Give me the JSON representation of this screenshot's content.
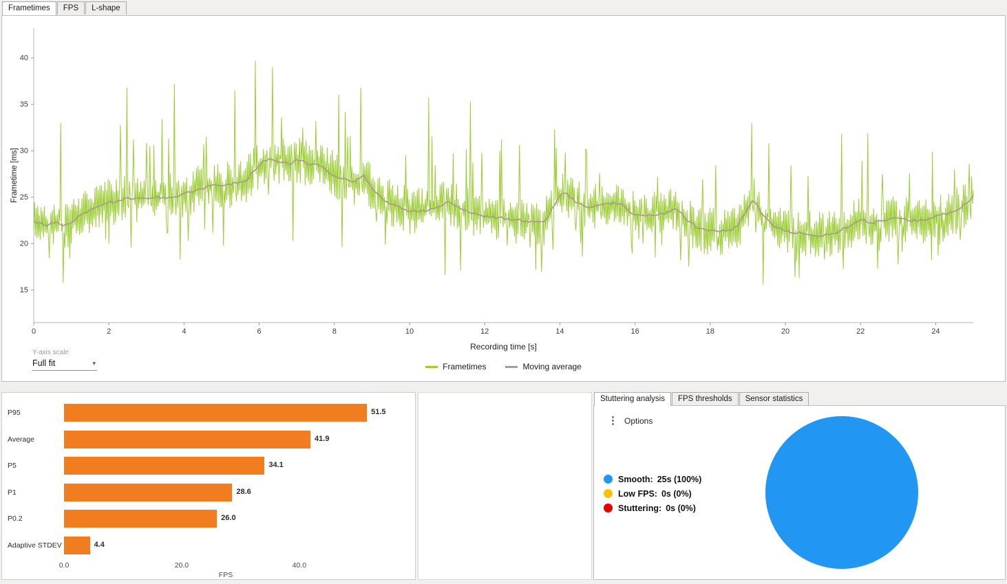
{
  "top_panel": {
    "tabs": [
      {
        "label": "Frametimes",
        "active": true
      },
      {
        "label": "FPS",
        "active": false
      },
      {
        "label": "L-shape",
        "active": false
      }
    ],
    "y_axis_scale": {
      "label": "Y-axis scale",
      "value": "Full fit"
    },
    "legend": [
      {
        "label": "Frametimes",
        "color": "#9ACD32"
      },
      {
        "label": "Moving average",
        "color": "#AB9B8D"
      }
    ]
  },
  "right_panel": {
    "tabs": [
      {
        "label": "Stuttering analysis",
        "active": true
      },
      {
        "label": "FPS thresholds",
        "active": false
      },
      {
        "label": "Sensor statistics",
        "active": false
      }
    ],
    "options_label": "Options",
    "legend": [
      {
        "label": "Smooth:",
        "value": "25s (100%)",
        "color": "#2196F3"
      },
      {
        "label": "Low FPS:",
        "value": "0s (0%)",
        "color": "#FFC107"
      },
      {
        "label": "Stuttering:",
        "value": "0s (0%)",
        "color": "#E60000"
      }
    ]
  },
  "chart_data": [
    {
      "type": "line",
      "title": "Frametimes",
      "xlabel": "Recording time [s]",
      "ylabel": "Frametime [ms]",
      "xlim": [
        0,
        25
      ],
      "ylim": [
        11.5,
        43.2
      ],
      "xticks": [
        0,
        2,
        4,
        6,
        8,
        10,
        12,
        14,
        16,
        18,
        20,
        22,
        24
      ],
      "yticks": [
        15,
        20,
        25,
        30,
        35,
        40
      ],
      "grid": false,
      "legend_position": "bottom",
      "series": [
        {
          "name": "Frametimes",
          "color": "#9ACD32"
        },
        {
          "name": "Moving average",
          "color": "#AB9B8D"
        }
      ],
      "moving_average_waypoints": [
        [
          0,
          22.3
        ],
        [
          0.3,
          22.0
        ],
        [
          0.6,
          22.3
        ],
        [
          0.8,
          21.8
        ],
        [
          1.0,
          22.4
        ],
        [
          1.3,
          23.2
        ],
        [
          1.6,
          23.8
        ],
        [
          2.0,
          24.4
        ],
        [
          2.4,
          24.8
        ],
        [
          2.8,
          24.9
        ],
        [
          3.2,
          25.0
        ],
        [
          3.6,
          25.0
        ],
        [
          4.0,
          25.3
        ],
        [
          4.4,
          25.9
        ],
        [
          4.8,
          26.3
        ],
        [
          5.2,
          26.4
        ],
        [
          5.6,
          26.6
        ],
        [
          5.9,
          28.0
        ],
        [
          6.1,
          28.8
        ],
        [
          6.3,
          29.2
        ],
        [
          6.5,
          28.9
        ],
        [
          6.8,
          28.6
        ],
        [
          7.0,
          29.0
        ],
        [
          7.3,
          28.6
        ],
        [
          7.6,
          28.4
        ],
        [
          7.9,
          27.6
        ],
        [
          8.2,
          27.0
        ],
        [
          8.5,
          26.6
        ],
        [
          8.8,
          27.3
        ],
        [
          9.0,
          26.0
        ],
        [
          9.3,
          24.8
        ],
        [
          9.6,
          24.1
        ],
        [
          10.0,
          23.5
        ],
        [
          10.4,
          23.6
        ],
        [
          10.7,
          23.9
        ],
        [
          11.0,
          24.5
        ],
        [
          11.2,
          24.2
        ],
        [
          11.5,
          23.5
        ],
        [
          12.0,
          23.0
        ],
        [
          12.4,
          22.8
        ],
        [
          12.8,
          22.6
        ],
        [
          13.2,
          22.3
        ],
        [
          13.6,
          22.4
        ],
        [
          13.9,
          24.5
        ],
        [
          14.1,
          25.6
        ],
        [
          14.4,
          24.6
        ],
        [
          14.7,
          24.0
        ],
        [
          15.0,
          24.1
        ],
        [
          15.3,
          24.4
        ],
        [
          15.6,
          24.3
        ],
        [
          16.0,
          23.1
        ],
        [
          16.4,
          23.0
        ],
        [
          16.8,
          23.3
        ],
        [
          17.1,
          23.9
        ],
        [
          17.4,
          22.5
        ],
        [
          17.7,
          21.6
        ],
        [
          18.0,
          21.3
        ],
        [
          18.4,
          21.4
        ],
        [
          18.7,
          21.7
        ],
        [
          19.0,
          23.8
        ],
        [
          19.15,
          24.9
        ],
        [
          19.4,
          23.0
        ],
        [
          19.7,
          21.9
        ],
        [
          20.0,
          21.4
        ],
        [
          20.4,
          21.1
        ],
        [
          20.8,
          20.9
        ],
        [
          21.2,
          21.0
        ],
        [
          21.6,
          21.7
        ],
        [
          22.0,
          22.6
        ],
        [
          22.3,
          22.2
        ],
        [
          22.6,
          22.4
        ],
        [
          23.0,
          22.8
        ],
        [
          23.3,
          22.4
        ],
        [
          23.7,
          22.6
        ],
        [
          24.0,
          23.0
        ],
        [
          24.4,
          23.3
        ],
        [
          24.7,
          23.9
        ],
        [
          25.0,
          25.1
        ]
      ],
      "peaks": [
        [
          0.72,
          33.0
        ],
        [
          2.47,
          36.8
        ],
        [
          3.1,
          30.5
        ],
        [
          3.42,
          33.4
        ],
        [
          3.75,
          37.2
        ],
        [
          4.6,
          31.5
        ],
        [
          5.35,
          36.5
        ],
        [
          5.9,
          39.7
        ],
        [
          6.35,
          39.0
        ],
        [
          6.6,
          33.6
        ],
        [
          7.15,
          32.5
        ],
        [
          7.5,
          33.2
        ],
        [
          8.35,
          31.5
        ],
        [
          8.7,
          36.8
        ],
        [
          9.9,
          29.5
        ],
        [
          10.5,
          35.7
        ],
        [
          11.62,
          35.3
        ],
        [
          12.4,
          30.0
        ],
        [
          13.9,
          30.3
        ],
        [
          14.15,
          29.8
        ],
        [
          15.05,
          27.6
        ],
        [
          16.6,
          27.2
        ],
        [
          19.1,
          33.0
        ],
        [
          19.55,
          30.8
        ],
        [
          20.6,
          27.3
        ],
        [
          21.5,
          31.8
        ],
        [
          22.2,
          31.9
        ],
        [
          23.3,
          27.6
        ],
        [
          24.5,
          28.0
        ],
        [
          24.9,
          28.6
        ]
      ],
      "dips": [
        [
          0.78,
          15.8
        ],
        [
          2.6,
          19.6
        ],
        [
          3.9,
          18.3
        ],
        [
          5.05,
          19.8
        ],
        [
          6.9,
          20.3
        ],
        [
          8.2,
          19.6
        ],
        [
          9.35,
          19.9
        ],
        [
          10.95,
          16.6
        ],
        [
          11.35,
          17.1
        ],
        [
          12.6,
          19.8
        ],
        [
          13.2,
          19.6
        ],
        [
          14.6,
          18.6
        ],
        [
          16.2,
          20.0
        ],
        [
          18.2,
          19.3
        ],
        [
          19.4,
          15.6
        ],
        [
          20.3,
          18.1
        ],
        [
          21.05,
          18.3
        ],
        [
          22.5,
          19.3
        ],
        [
          23.1,
          19.1
        ],
        [
          24.2,
          20.2
        ]
      ],
      "noise": {
        "seed": 1337,
        "points": 1150,
        "amplitude": 2.1
      }
    },
    {
      "type": "bar",
      "orientation": "horizontal",
      "categories": [
        "P95",
        "Average",
        "P5",
        "P1",
        "P0.2",
        "Adaptive STDEV"
      ],
      "values": [
        51.5,
        41.9,
        34.1,
        28.6,
        26.0,
        4.4
      ],
      "value_labels": [
        "51.5",
        "41.9",
        "34.1",
        "28.6",
        "26.0",
        "4.4"
      ],
      "xlabel": "FPS",
      "xticks": [
        0,
        20,
        40
      ],
      "xtick_labels": [
        "0.0",
        "20.0",
        "40.0"
      ],
      "xlim": [
        0,
        55
      ],
      "bar_color": "#F17D20"
    },
    {
      "type": "pie",
      "title": "Stuttering analysis",
      "slices": [
        {
          "label": "Smooth",
          "value": 100,
          "value_text": "25s (100%)",
          "color": "#2196F3"
        },
        {
          "label": "Low FPS",
          "value": 0,
          "value_text": "0s (0%)",
          "color": "#FFC107"
        },
        {
          "label": "Stuttering",
          "value": 0,
          "value_text": "0s (0%)",
          "color": "#E60000"
        }
      ]
    }
  ]
}
